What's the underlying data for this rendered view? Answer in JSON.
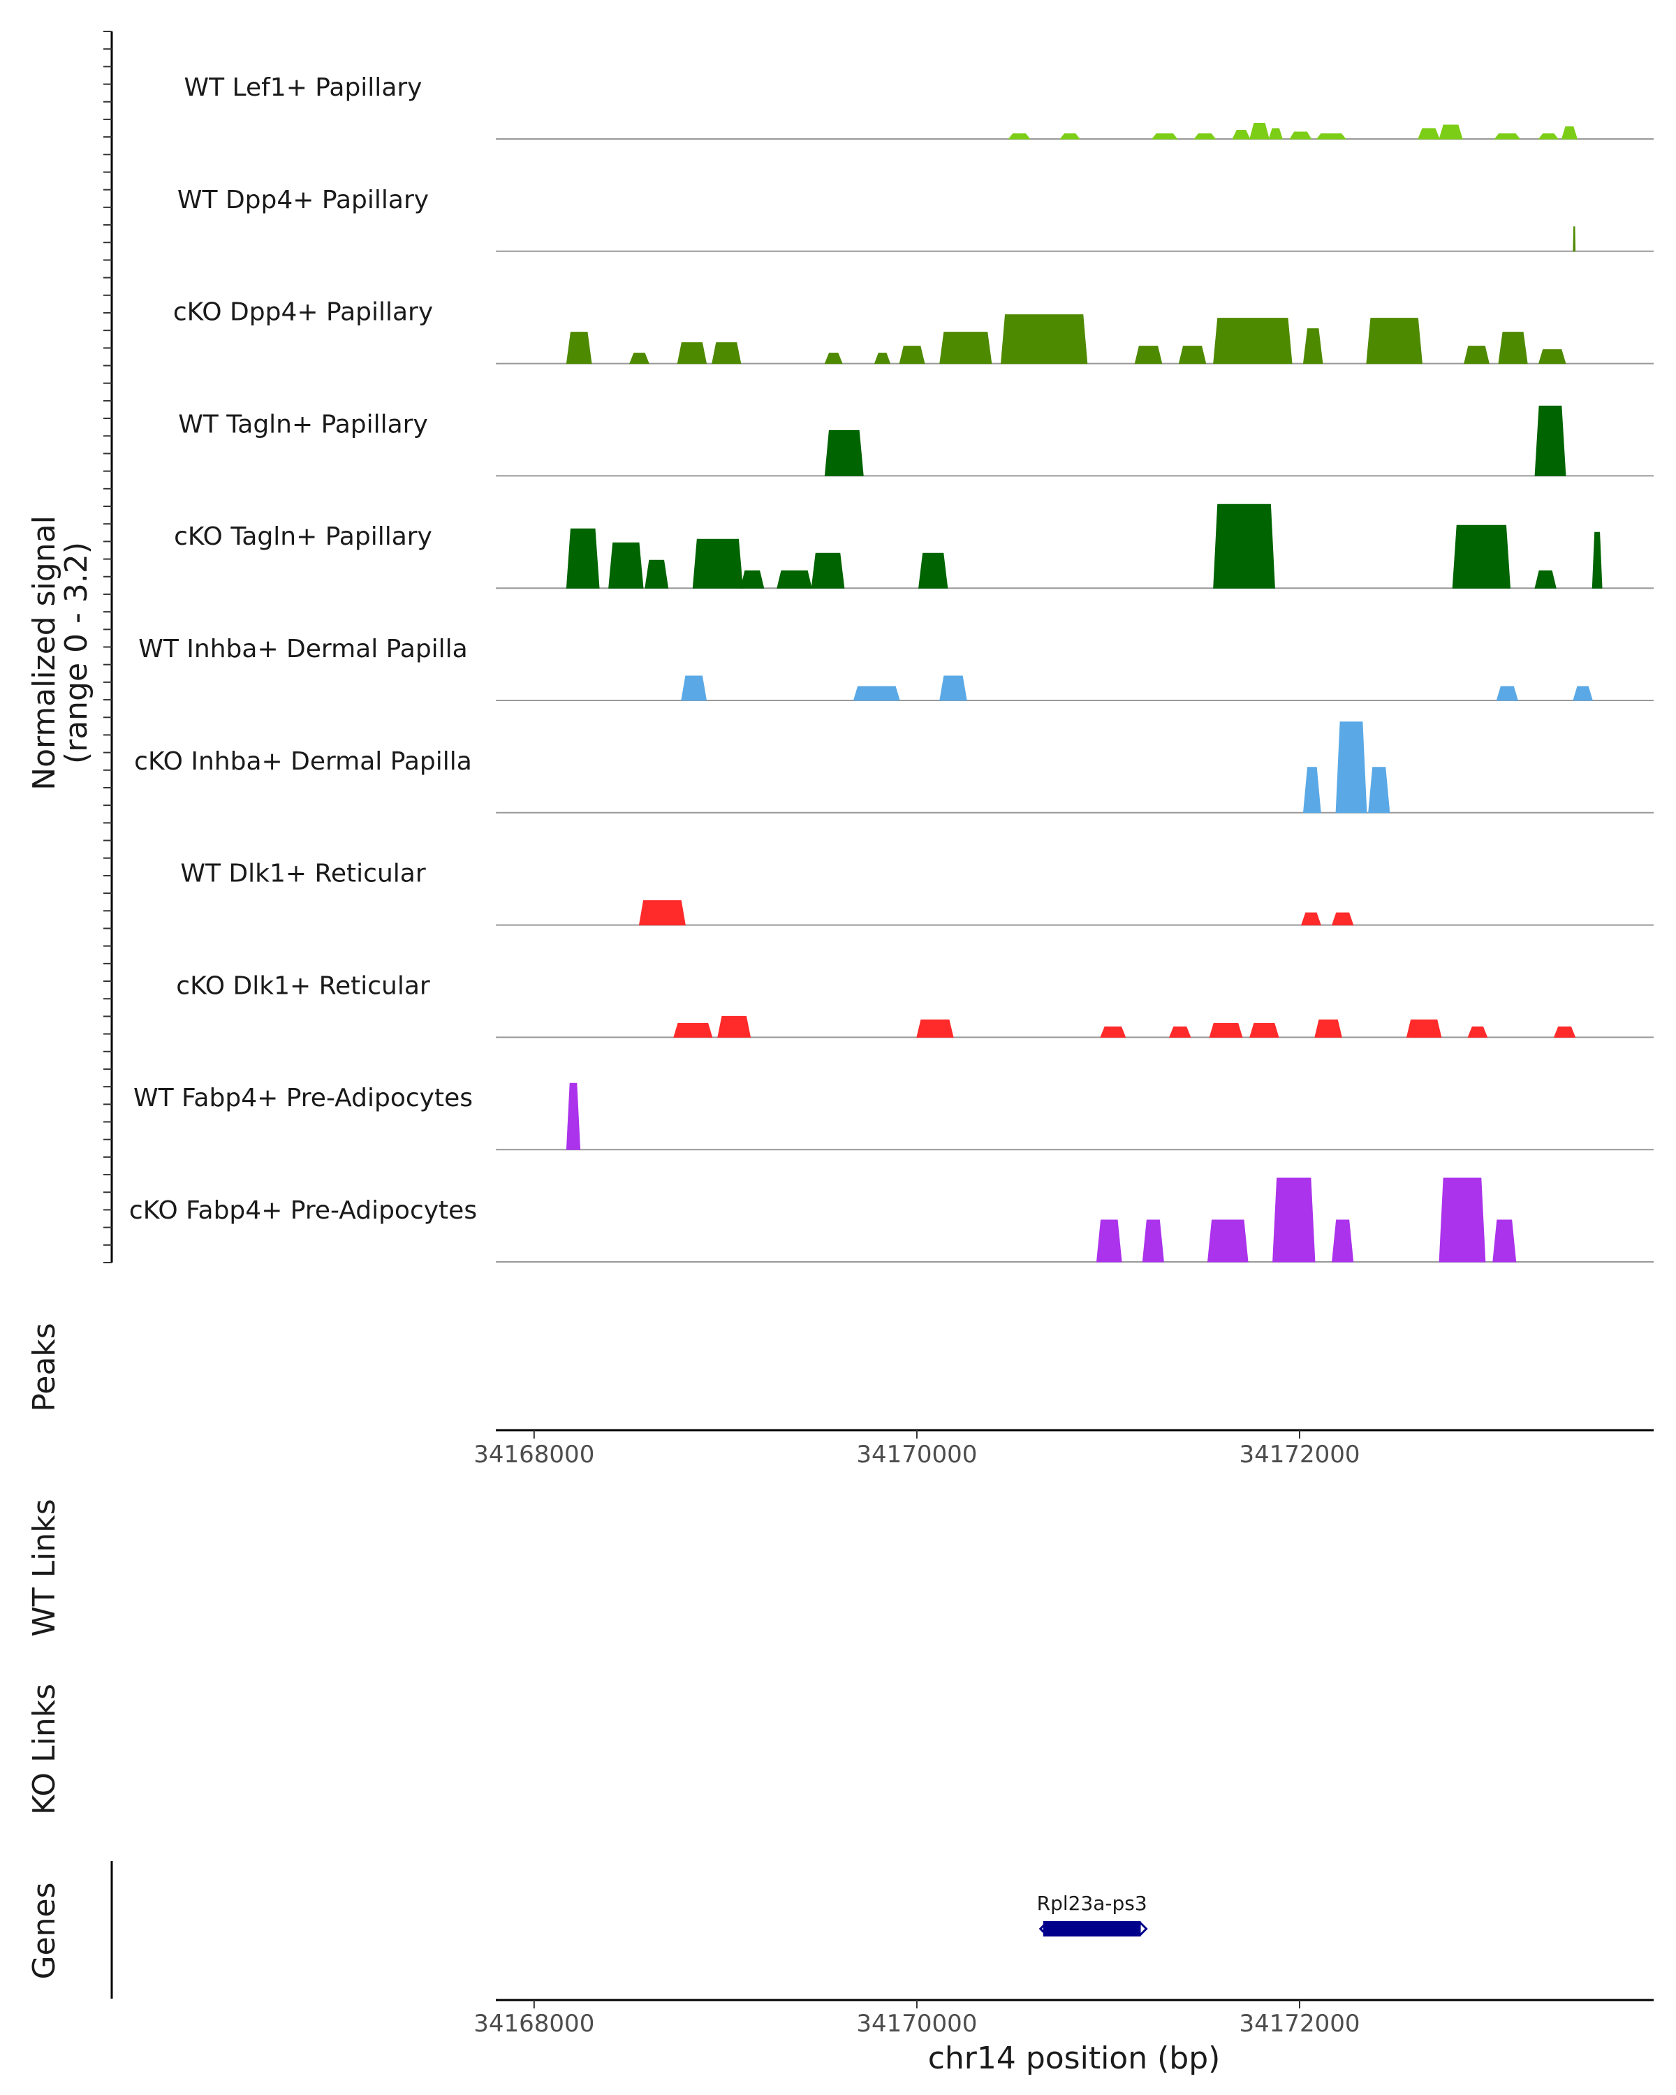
{
  "chart_data": {
    "type": "area",
    "chromosome": "chr14",
    "region": [
      34167800,
      34173850
    ],
    "y_axis": {
      "label": "Normalized signal",
      "range_label": "(range 0 - 3.2)",
      "ylim": [
        0,
        3.2
      ]
    },
    "tracks": [
      {
        "name": "WT Lef1+ Papillary",
        "color": "#7CCD16",
        "segments": [
          [
            34170480,
            34170590,
            0.15
          ],
          [
            34170750,
            34170850,
            0.15
          ],
          [
            34171230,
            34171360,
            0.15
          ],
          [
            34171450,
            34171560,
            0.15
          ],
          [
            34171650,
            34171740,
            0.25
          ],
          [
            34171740,
            34171840,
            0.45
          ],
          [
            34171840,
            34171910,
            0.3
          ],
          [
            34171950,
            34172060,
            0.2
          ],
          [
            34172090,
            34172240,
            0.15
          ],
          [
            34172620,
            34172730,
            0.3
          ],
          [
            34172730,
            34172850,
            0.4
          ],
          [
            34173020,
            34173150,
            0.15
          ],
          [
            34173250,
            34173350,
            0.15
          ],
          [
            34173370,
            34173450,
            0.35
          ]
        ]
      },
      {
        "name": "WT Dpp4+ Papillary",
        "color": "#4E8A00",
        "segments": [
          [
            34173430,
            34173440,
            0.7
          ]
        ]
      },
      {
        "name": "cKO Dpp4+ Papillary",
        "color": "#4E8A00",
        "segments": [
          [
            34168170,
            34168300,
            0.9
          ],
          [
            34168500,
            34168600,
            0.3
          ],
          [
            34168750,
            34168900,
            0.6
          ],
          [
            34168930,
            34169080,
            0.6
          ],
          [
            34169520,
            34169610,
            0.3
          ],
          [
            34169780,
            34169860,
            0.3
          ],
          [
            34169910,
            34170040,
            0.5
          ],
          [
            34170120,
            34170390,
            0.9
          ],
          [
            34170440,
            34170890,
            1.4
          ],
          [
            34171140,
            34171280,
            0.5
          ],
          [
            34171370,
            34171510,
            0.5
          ],
          [
            34171550,
            34171960,
            1.3
          ],
          [
            34172020,
            34172120,
            1.0
          ],
          [
            34172350,
            34172640,
            1.3
          ],
          [
            34172860,
            34172990,
            0.5
          ],
          [
            34173040,
            34173190,
            0.9
          ],
          [
            34173250,
            34173390,
            0.4
          ]
        ]
      },
      {
        "name": "WT Tagln+ Papillary",
        "color": "#006400",
        "segments": [
          [
            34169520,
            34169720,
            1.3
          ],
          [
            34173230,
            34173390,
            2.0
          ]
        ]
      },
      {
        "name": "cKO Tagln+ Papillary",
        "color": "#006400",
        "segments": [
          [
            34168170,
            34168340,
            1.7
          ],
          [
            34168390,
            34168570,
            1.3
          ],
          [
            34168580,
            34168700,
            0.8
          ],
          [
            34168830,
            34169090,
            1.4
          ],
          [
            34169080,
            34169200,
            0.5
          ],
          [
            34169270,
            34169450,
            0.5
          ],
          [
            34169450,
            34169620,
            1.0
          ],
          [
            34170010,
            34170160,
            1.0
          ],
          [
            34171550,
            34171870,
            2.4
          ],
          [
            34172800,
            34173100,
            1.8
          ],
          [
            34173230,
            34173340,
            0.5
          ],
          [
            34173530,
            34173580,
            1.6
          ]
        ]
      },
      {
        "name": "WT Inhba+ Dermal Papilla",
        "color": "#5AA9E6",
        "segments": [
          [
            34168770,
            34168900,
            0.7
          ],
          [
            34169670,
            34169910,
            0.4
          ],
          [
            34170120,
            34170260,
            0.7
          ],
          [
            34173030,
            34173140,
            0.4
          ],
          [
            34173430,
            34173530,
            0.4
          ]
        ]
      },
      {
        "name": "cKO Inhba+ Dermal Papilla",
        "color": "#5AA9E6",
        "segments": [
          [
            34172020,
            34172110,
            1.3
          ],
          [
            34172190,
            34172350,
            2.6
          ],
          [
            34172360,
            34172470,
            1.3
          ]
        ]
      },
      {
        "name": "WT Dlk1+ Reticular",
        "color": "#FF2A2A",
        "segments": [
          [
            34168550,
            34168790,
            0.7
          ],
          [
            34172010,
            34172110,
            0.35
          ],
          [
            34172170,
            34172280,
            0.35
          ]
        ]
      },
      {
        "name": "cKO Dlk1+ Reticular",
        "color": "#FF2A2A",
        "segments": [
          [
            34168730,
            34168930,
            0.4
          ],
          [
            34168960,
            34169130,
            0.6
          ],
          [
            34170000,
            34170190,
            0.5
          ],
          [
            34170960,
            34171090,
            0.3
          ],
          [
            34171320,
            34171430,
            0.3
          ],
          [
            34171530,
            34171700,
            0.4
          ],
          [
            34171740,
            34171890,
            0.4
          ],
          [
            34172080,
            34172220,
            0.5
          ],
          [
            34172560,
            34172740,
            0.5
          ],
          [
            34172880,
            34172980,
            0.3
          ],
          [
            34173330,
            34173440,
            0.3
          ]
        ]
      },
      {
        "name": "WT Fabp4+ Pre-Adipocytes",
        "color": "#AB33EC",
        "segments": [
          [
            34168170,
            34168240,
            1.9
          ]
        ]
      },
      {
        "name": "cKO Fabp4+ Pre-Adipocytes",
        "color": "#AB33EC",
        "segments": [
          [
            34170940,
            34171070,
            1.2
          ],
          [
            34171180,
            34171290,
            1.2
          ],
          [
            34171520,
            34171730,
            1.2
          ],
          [
            34171860,
            34172080,
            2.4
          ],
          [
            34172170,
            34172280,
            1.2
          ],
          [
            34172730,
            34172970,
            2.4
          ],
          [
            34173010,
            34173130,
            1.2
          ]
        ]
      }
    ],
    "side_labels": {
      "signal": "Normalized signal",
      "peaks": "Peaks",
      "wt_links": "WT Links",
      "ko_links": "KO Links",
      "genes": "Genes"
    },
    "x_ticks": [
      34168000,
      34170000,
      34172000
    ],
    "x_tick_labels": [
      "34168000",
      "34170000",
      "34172000"
    ],
    "xlabel": "chr14 position (bp)",
    "genes": [
      {
        "name": "Rpl23a-ps3",
        "start": 34170660,
        "end": 34171170,
        "strand": "-",
        "color": "#00008B"
      }
    ]
  }
}
